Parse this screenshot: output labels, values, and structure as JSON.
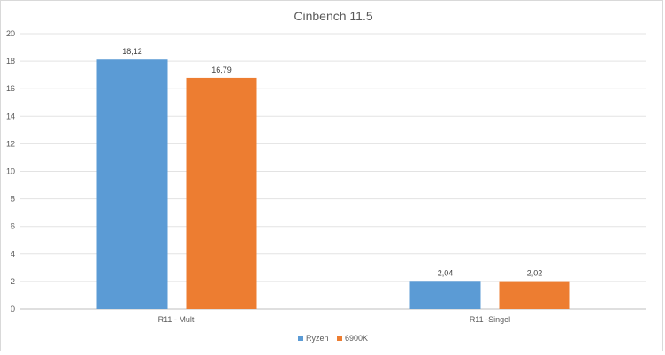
{
  "chart_data": {
    "type": "bar",
    "title": "Cinbench 11.5",
    "xlabel": "",
    "ylabel": "",
    "categories": [
      "R11 - Multi",
      "R11 -Singel"
    ],
    "series": [
      {
        "name": "Ryzen",
        "color": "#5b9bd5",
        "values": [
          18.12,
          2.04
        ],
        "value_labels": [
          "18,12",
          "2,04"
        ]
      },
      {
        "name": "6900K",
        "color": "#ed7d31",
        "values": [
          16.79,
          2.02
        ],
        "value_labels": [
          "16,79",
          "2,02"
        ]
      }
    ],
    "ylim": [
      0,
      20
    ],
    "yticks": [
      0,
      2,
      4,
      6,
      8,
      10,
      12,
      14,
      16,
      18,
      20
    ],
    "grid": true,
    "legend_position": "bottom"
  }
}
